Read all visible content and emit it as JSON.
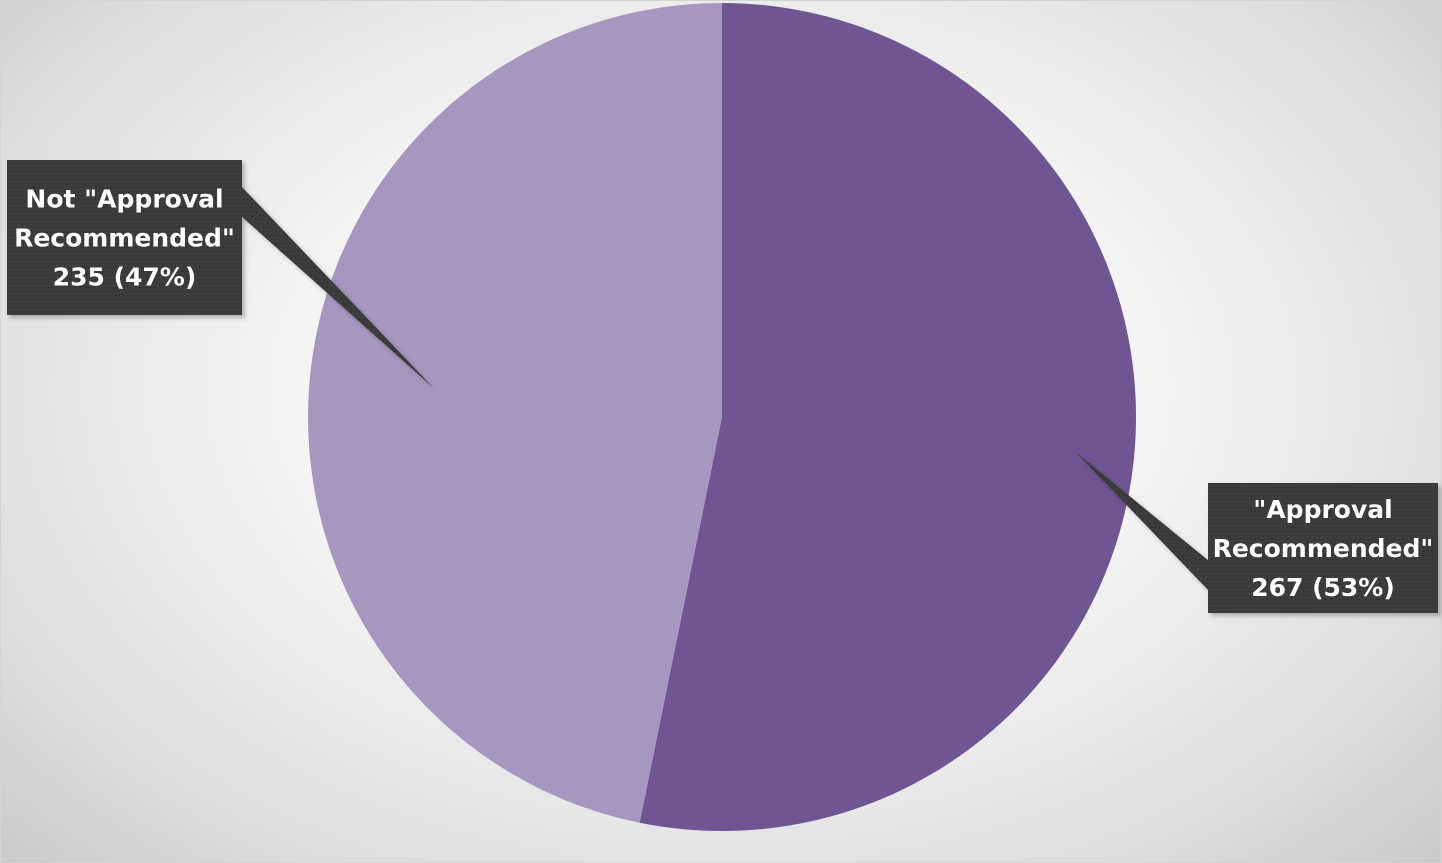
{
  "chart_data": {
    "type": "pie",
    "title": "",
    "slices": [
      {
        "label_lines": [
          "\"Approval",
          "Recommended\""
        ],
        "value_text": "267 (53%)",
        "value": 267,
        "percent": 53,
        "color": "#6f5592"
      },
      {
        "label_lines": [
          "Not \"Approval",
          "Recommended\""
        ],
        "value_text": "235 (47%)",
        "value": 235,
        "percent": 47,
        "color": "#a796bf"
      }
    ],
    "start": "12 o'clock",
    "direction": "clockwise",
    "data_label_style": "callout",
    "data_label_colors": {
      "background": "#3a3a3a",
      "text": "#ffffff"
    }
  }
}
